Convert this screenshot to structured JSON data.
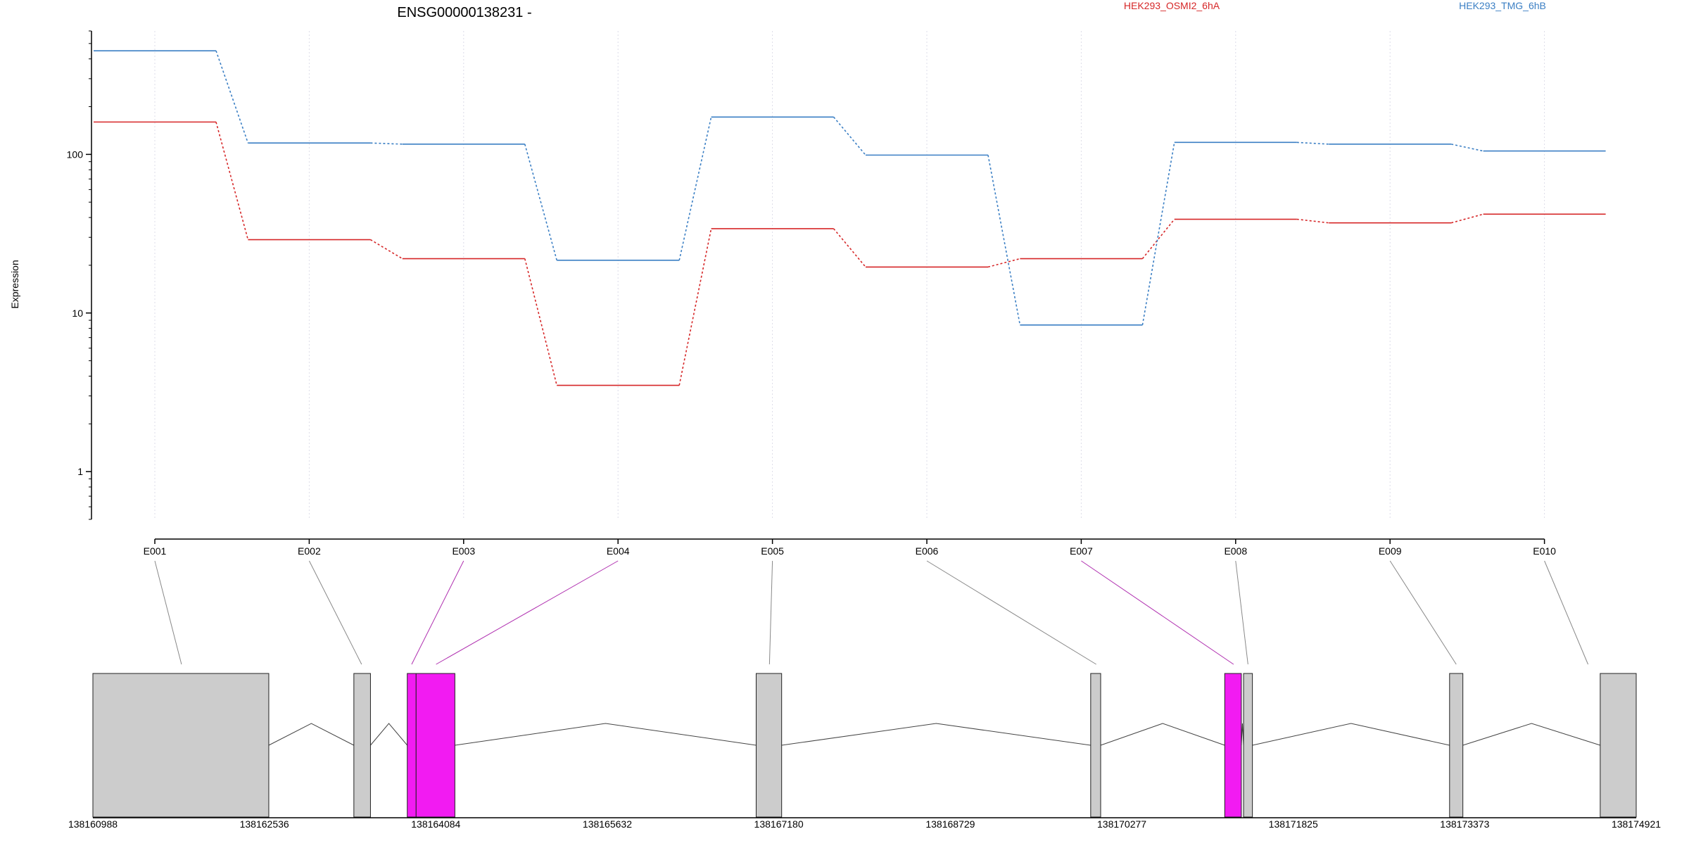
{
  "chart_data": {
    "type": "line",
    "title": "ENSG00000138231 -",
    "ylabel": "Expression",
    "y_scale": "log",
    "ylim": [
      0.5,
      600
    ],
    "y_ticks": [
      1,
      10,
      100
    ],
    "y_tick_labels": [
      "1",
      "10",
      "100"
    ],
    "categories": [
      "E001",
      "E002",
      "E003",
      "E004",
      "E005",
      "E006",
      "E007",
      "E008",
      "E009",
      "E010"
    ],
    "series": [
      {
        "name": "HEK293_OSMI2_6hA",
        "color": "#d62728",
        "values": [
          160,
          29,
          22,
          3.5,
          34,
          19.5,
          22,
          39,
          37,
          42
        ]
      },
      {
        "name": "HEK293_TMG_6hB",
        "color": "#3b7fc4",
        "values": [
          450,
          118,
          116,
          21.5,
          172,
          99,
          8.4,
          119,
          116,
          105
        ]
      }
    ],
    "grid": "vertical-dotted",
    "legend": "top",
    "gene_model": {
      "genomic_range": [
        138160988,
        138174921
      ],
      "axis_ticks": [
        138160988,
        138162536,
        138164084,
        138165632,
        138167180,
        138168729,
        138170277,
        138171825,
        138173373,
        138174921
      ],
      "exons": [
        {
          "start": 138160988,
          "end": 138162576,
          "highlight": false
        },
        {
          "start": 138163344,
          "end": 138163494,
          "highlight": false
        },
        {
          "start": 138163826,
          "end": 138163906,
          "highlight": true
        },
        {
          "start": 138163906,
          "end": 138164256,
          "highlight": true
        },
        {
          "start": 138166976,
          "end": 138167206,
          "highlight": false
        },
        {
          "start": 138169996,
          "end": 138170086,
          "highlight": false
        },
        {
          "start": 138171206,
          "end": 138171356,
          "highlight": true
        },
        {
          "start": 138171376,
          "end": 138171456,
          "highlight": false
        },
        {
          "start": 138173236,
          "end": 138173356,
          "highlight": false
        },
        {
          "start": 138174596,
          "end": 138174921,
          "highlight": false
        }
      ],
      "exon_links": [
        {
          "exon": "E001",
          "target": 138161788,
          "highlight": false
        },
        {
          "exon": "E002",
          "target": 138163414,
          "highlight": false
        },
        {
          "exon": "E003",
          "target": 138163866,
          "highlight": true
        },
        {
          "exon": "E004",
          "target": 138164086,
          "highlight": true
        },
        {
          "exon": "E005",
          "target": 138167096,
          "highlight": false
        },
        {
          "exon": "E006",
          "target": 138170046,
          "highlight": false
        },
        {
          "exon": "E007",
          "target": 138171286,
          "highlight": true
        },
        {
          "exon": "E008",
          "target": 138171416,
          "highlight": false
        },
        {
          "exon": "E009",
          "target": 138173296,
          "highlight": false
        },
        {
          "exon": "E010",
          "target": 138174486,
          "highlight": false
        }
      ]
    },
    "colors": {
      "highlight_exon": "#f21bf2",
      "exon": "#cccccc",
      "highlight_link": "#b030b0",
      "link": "#888888"
    }
  }
}
